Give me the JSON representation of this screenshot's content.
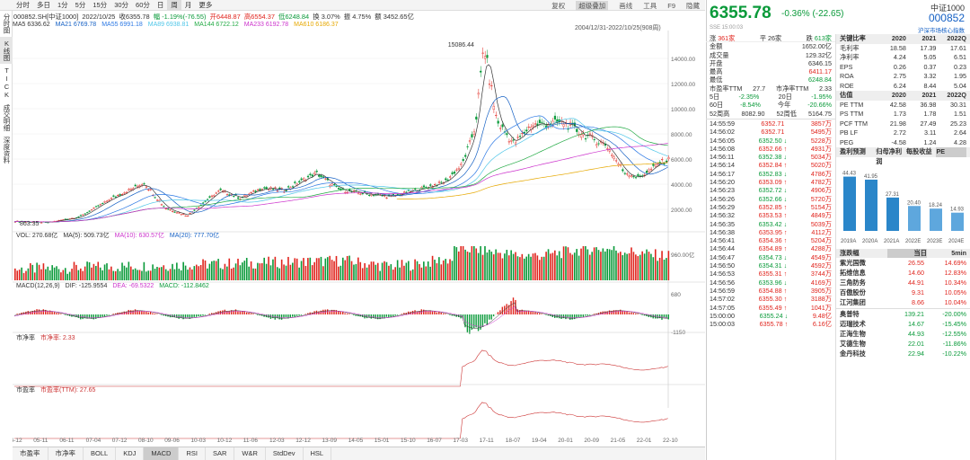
{
  "toolbar": {
    "items": [
      "分时",
      "多日",
      "1分",
      "5分",
      "15分",
      "30分",
      "60分",
      "日",
      "周",
      "月",
      "更多"
    ],
    "active": "周",
    "right": [
      "复权",
      "超级叠加",
      "画线",
      "工具",
      "F9",
      "隐藏"
    ]
  },
  "sidebar": {
    "tabs": [
      "分时图",
      "K线图",
      "TICK",
      "成交明细",
      "深度资料"
    ]
  },
  "info": {
    "code": "000852.SH[中证1000]",
    "date": "2022/10/25",
    "close": "收6355.78",
    "change": "幅 -1.19%(-76.55)",
    "open": "开6448.87",
    "high": "高6554.37",
    "low": "低6248.84",
    "turnover": "换 3.07%",
    "amp": "振 4.75%",
    "amount": "额 3452.65亿"
  },
  "ma": [
    {
      "label": "MA5 6336.62",
      "color": "#333333"
    },
    {
      "label": "MA21 6769.78",
      "color": "#1560c4"
    },
    {
      "label": "MA55 6991.18",
      "color": "#2b78e4"
    },
    {
      "label": "MA89 6938.81",
      "color": "#4fc6e8"
    },
    {
      "label": "MA144 6722.12",
      "color": "#22aa44"
    },
    {
      "label": "MA233 6192.78",
      "color": "#cc33cc"
    },
    {
      "label": "MA610 6186.37",
      "color": "#e6a800"
    }
  ],
  "range": "2004/12/31-2022/10/25(908周)",
  "price_axis": [
    "14000.00",
    "12000.00",
    "10000.00",
    "8000.00",
    "6000.00",
    "4000.00",
    "2000.00"
  ],
  "price_annot": {
    "high": "15086.44",
    "low": "863.35"
  },
  "vol": {
    "label": "VOL: 270.68亿",
    "ma5": "MA(5): 509.73亿",
    "ma10": "MA(10): 630.57亿",
    "ma20": "MA(20): 777.70亿",
    "axis": "960.00亿"
  },
  "macd": {
    "label": "MACD(12,26,9)",
    "dif": "DIF: -125.9554",
    "dea": "DEA: -69.5322",
    "macd": "MACD: -112.8462",
    "axis_top": "680",
    "axis_bot": "-1150"
  },
  "pb": {
    "title": "市净率",
    "label": "市净率: 2.33"
  },
  "pe": {
    "title": "市盈率",
    "label": "市盈率(TTM): 27.65"
  },
  "x_labels": [
    "04-12",
    "05-11",
    "06-11",
    "07-04",
    "07-12",
    "08-10",
    "09-06",
    "10-03",
    "10-12",
    "11-06",
    "12-03",
    "12-12",
    "13-09",
    "14-05",
    "15-01",
    "15-10",
    "16-07",
    "17-03",
    "17-11",
    "18-07",
    "19-04",
    "20-01",
    "20-09",
    "21-05",
    "22-01",
    "22-10"
  ],
  "bottom_tabs": [
    "市盈率",
    "市净率",
    "BOLL",
    "KDJ",
    "MACD",
    "RSI",
    "SAR",
    "W&R",
    "StdDev",
    "HSL"
  ],
  "header": {
    "price": "6355.78",
    "change": "-0.36% (-22.65)",
    "name": "中证1000",
    "code": "000852",
    "sse": "SSE 15:00:03",
    "hsl": "沪深市场核心指数"
  },
  "quote": {
    "counts": [
      {
        "label": "涨",
        "value": "361家"
      },
      {
        "label": "平",
        "value": "26家"
      },
      {
        "label": "跌",
        "value": "613家"
      }
    ],
    "rows": [
      [
        "金额",
        "1652.00亿"
      ],
      [
        "成交量",
        "129.32亿"
      ],
      [
        "开盘",
        "6346.15"
      ],
      [
        "最高",
        "6411.17"
      ],
      [
        "最低",
        "6248.84"
      ]
    ],
    "pe_row": {
      "l1": "市盈率TTM",
      "v1": "27.7",
      "l2": "市净率TTM",
      "v2": "2.33"
    },
    "periods": [
      [
        "5日",
        "-2.35%",
        "20日",
        "-1.95%"
      ],
      [
        "60日",
        "-8.54%",
        "今年",
        "-20.66%"
      ],
      [
        "52周高",
        "8082.90",
        "52周低",
        "5164.75"
      ]
    ],
    "ticks": [
      [
        "14:55:59",
        "6352.71",
        "3857万"
      ],
      [
        "14:56:02",
        "6352.71",
        "5495万"
      ],
      [
        "14:56:05",
        "6352.50",
        "5228万"
      ],
      [
        "14:56:08",
        "6352.66",
        "4931万"
      ],
      [
        "14:56:11",
        "6352.38",
        "5034万"
      ],
      [
        "14:56:14",
        "6352.84",
        "5020万"
      ],
      [
        "14:56:17",
        "6352.83",
        "4786万"
      ],
      [
        "14:56:20",
        "6353.09",
        "4782万"
      ],
      [
        "14:56:23",
        "6352.72",
        "4906万"
      ],
      [
        "14:56:26",
        "6352.66",
        "5720万"
      ],
      [
        "14:56:29",
        "6352.85",
        "5154万"
      ],
      [
        "14:56:32",
        "6353.53",
        "4849万"
      ],
      [
        "14:56:35",
        "6353.42",
        "5039万"
      ],
      [
        "14:56:38",
        "6353.95",
        "4112万"
      ],
      [
        "14:56:41",
        "6354.36",
        "5204万"
      ],
      [
        "14:56:44",
        "6354.89",
        "4288万"
      ],
      [
        "14:56:47",
        "6354.73",
        "4549万"
      ],
      [
        "14:56:50",
        "6354.31",
        "4592万"
      ],
      [
        "14:56:53",
        "6355.31",
        "3744万"
      ],
      [
        "14:56:56",
        "6353.96",
        "4169万"
      ],
      [
        "14:56:59",
        "6354.88",
        "3905万"
      ],
      [
        "14:57:02",
        "6355.30",
        "3188万"
      ],
      [
        "14:57:05",
        "6355.49",
        "1041万"
      ],
      [
        "15:00:00",
        "6355.24",
        "9.48亿"
      ],
      [
        "15:00:03",
        "6355.78",
        "6.16亿"
      ]
    ]
  },
  "metrics": {
    "title": "关键比率",
    "years": [
      "2020",
      "2021",
      "2022Q"
    ],
    "rows": [
      [
        "毛利率",
        "18.58",
        "17.39",
        "17.61"
      ],
      [
        "净利率",
        "4.24",
        "5.05",
        "6.51"
      ],
      [
        "EPS",
        "0.26",
        "0.37",
        "0.23"
      ],
      [
        "ROA",
        "2.75",
        "3.32",
        "1.95"
      ],
      [
        "ROE",
        "6.24",
        "8.44",
        "5.04"
      ]
    ]
  },
  "valuation": {
    "title": "估值",
    "years": [
      "2020",
      "2021",
      "2022Q"
    ],
    "rows": [
      [
        "PE TTM",
        "42.58",
        "36.98",
        "30.31"
      ],
      [
        "PS TTM",
        "1.73",
        "1.78",
        "1.51"
      ],
      [
        "PCF TTM",
        "21.98",
        "27.49",
        "25.23"
      ],
      [
        "PB LF",
        "2.72",
        "3.11",
        "2.64"
      ],
      [
        "PEG",
        "-4.58",
        "1.24",
        "4.28"
      ]
    ]
  },
  "forecast": {
    "tabs": [
      "盈利预测",
      "归母净利润",
      "每股收益",
      "PE"
    ],
    "bars": [
      {
        "label": "2019A",
        "value": 44.43
      },
      {
        "label": "2020A",
        "value": 41.95
      },
      {
        "label": "2021A",
        "value": 27.31
      },
      {
        "label": "2022E",
        "value": 20.4
      },
      {
        "label": "2023E",
        "value": 18.24
      },
      {
        "label": "2024E",
        "value": 14.93
      }
    ],
    "bar_labels": [
      "44.43",
      "41.95",
      "27.31",
      "20.40",
      "18.24",
      "14.93"
    ]
  },
  "movers": {
    "title": "涨跌幅",
    "tabs": [
      "当日",
      "5min"
    ],
    "up": [
      [
        "紫光国微",
        "26.55",
        "14.69%"
      ],
      [
        "拓维信息",
        "14.60",
        "12.83%"
      ],
      [
        "三角防务",
        "44.91",
        "10.34%"
      ],
      [
        "百傲股份",
        "9.31",
        "10.05%"
      ],
      [
        "江河集团",
        "8.66",
        "10.04%"
      ]
    ],
    "down": [
      [
        "奥普特",
        "139.21",
        "-20.00%"
      ],
      [
        "迈瑞技术",
        "14.67",
        "-15.45%"
      ],
      [
        "正海生物",
        "44.93",
        "-12.55%"
      ],
      [
        "艾德生物",
        "22.01",
        "-11.86%"
      ],
      [
        "金丹科技",
        "22.94",
        "-10.22%"
      ]
    ]
  },
  "colors": {
    "up": "#e0241d",
    "down": "#0a9a3a",
    "accent": "#1560c4"
  }
}
